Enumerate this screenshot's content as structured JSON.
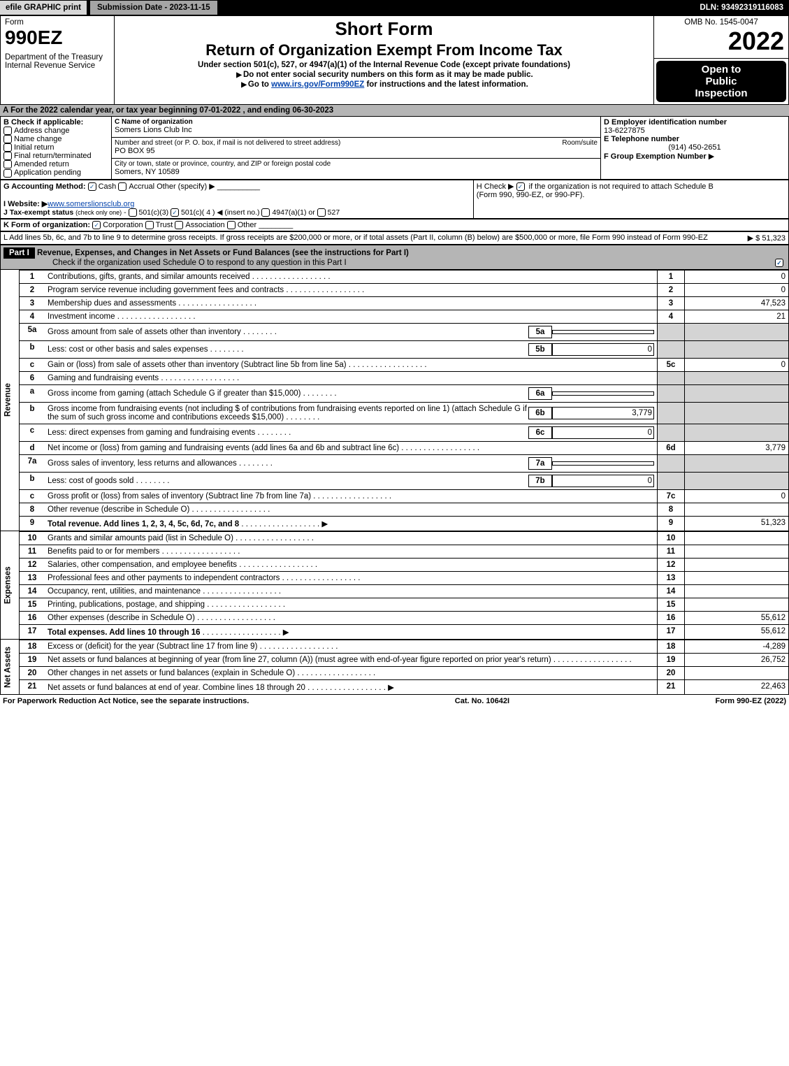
{
  "topbar": {
    "efile": "efile GRAPHIC print",
    "subdate": "Submission Date - 2023-11-15",
    "dln": "DLN: 93492319116083"
  },
  "header": {
    "form_label": "Form",
    "form_no": "990EZ",
    "dept": "Department of the Treasury",
    "irs": "Internal Revenue Service",
    "title1": "Short Form",
    "title2": "Return of Organization Exempt From Income Tax",
    "subtitle": "Under section 501(c), 527, or 4947(a)(1) of the Internal Revenue Code (except private foundations)",
    "note1": "Do not enter social security numbers on this form as it may be made public.",
    "note2_pre": "Go to ",
    "note2_link": "www.irs.gov/Form990EZ",
    "note2_post": " for instructions and the latest information.",
    "omb": "OMB No. 1545-0047",
    "year": "2022",
    "open1": "Open to",
    "open2": "Public",
    "open3": "Inspection"
  },
  "sectionA": "A  For the 2022 calendar year, or tax year beginning 07-01-2022 , and ending 06-30-2023",
  "boxB": {
    "title": "B  Check if applicable:",
    "opts": [
      "Address change",
      "Name change",
      "Initial return",
      "Final return/terminated",
      "Amended return",
      "Application pending"
    ]
  },
  "boxC": {
    "label_name": "C Name of organization",
    "name": "Somers Lions Club Inc",
    "label_addr": "Number and street (or P. O. box, if mail is not delivered to street address)",
    "room": "Room/suite",
    "addr": "PO BOX 95",
    "label_city": "City or town, state or province, country, and ZIP or foreign postal code",
    "city": "Somers, NY  10589"
  },
  "boxD": {
    "label": "D Employer identification number",
    "val": "13-6227875"
  },
  "boxE": {
    "label": "E Telephone number",
    "val": "(914) 450-2651"
  },
  "boxF": {
    "label": "F Group Exemption Number",
    "arrow": "▶"
  },
  "rowG": {
    "label": "G Accounting Method:",
    "cash": "Cash",
    "accrual": "Accrual",
    "other": "Other (specify) ▶"
  },
  "rowH": {
    "text1": "H  Check ▶",
    "text2": "if the organization is not required to attach Schedule B",
    "text3": "(Form 990, 990-EZ, or 990-PF)."
  },
  "rowI": {
    "label": "I Website: ▶",
    "val": "www.somerslionsclub.org"
  },
  "rowJ": "J Tax-exempt status (check only one) -  501(c)(3)   501(c)( 4 ) ◀ (insert no.)   4947(a)(1) or   527",
  "rowK": "K Form of organization:   Corporation   Trust   Association   Other",
  "rowL": {
    "text": "L Add lines 5b, 6c, and 7b to line 9 to determine gross receipts. If gross receipts are $200,000 or more, or if total assets (Part II, column (B) below) are $500,000 or more, file Form 990 instead of Form 990-EZ",
    "val": "▶ $ 51,323"
  },
  "part1": {
    "label": "Part I",
    "title": "Revenue, Expenses, and Changes in Net Assets or Fund Balances (see the instructions for Part I)",
    "check": "Check if the organization used Schedule O to respond to any question in this Part I"
  },
  "sidelabels": {
    "rev": "Revenue",
    "exp": "Expenses",
    "na": "Net Assets"
  },
  "lines": [
    {
      "n": "1",
      "d": "Contributions, gifts, grants, and similar amounts received",
      "rn": "1",
      "rv": "0"
    },
    {
      "n": "2",
      "d": "Program service revenue including government fees and contracts",
      "rn": "2",
      "rv": "0"
    },
    {
      "n": "3",
      "d": "Membership dues and assessments",
      "rn": "3",
      "rv": "47,523"
    },
    {
      "n": "4",
      "d": "Investment income",
      "rn": "4",
      "rv": "21"
    },
    {
      "n": "5a",
      "d": "Gross amount from sale of assets other than inventory",
      "sn": "5a",
      "sv": "",
      "shade": true
    },
    {
      "n": "b",
      "d": "Less: cost or other basis and sales expenses",
      "sn": "5b",
      "sv": "0",
      "shade": true
    },
    {
      "n": "c",
      "d": "Gain or (loss) from sale of assets other than inventory (Subtract line 5b from line 5a)",
      "rn": "5c",
      "rv": "0"
    },
    {
      "n": "6",
      "d": "Gaming and fundraising events",
      "shade": true
    },
    {
      "n": "a",
      "d": "Gross income from gaming (attach Schedule G if greater than $15,000)",
      "sn": "6a",
      "sv": "",
      "shade": true
    },
    {
      "n": "b",
      "d": "Gross income from fundraising events (not including $                of contributions from fundraising events reported on line 1) (attach Schedule G if the sum of such gross income and contributions exceeds $15,000)",
      "sn": "6b",
      "sv": "3,779",
      "shade": true
    },
    {
      "n": "c",
      "d": "Less: direct expenses from gaming and fundraising events",
      "sn": "6c",
      "sv": "0",
      "shade": true
    },
    {
      "n": "d",
      "d": "Net income or (loss) from gaming and fundraising events (add lines 6a and 6b and subtract line 6c)",
      "rn": "6d",
      "rv": "3,779"
    },
    {
      "n": "7a",
      "d": "Gross sales of inventory, less returns and allowances",
      "sn": "7a",
      "sv": "",
      "shade": true
    },
    {
      "n": "b",
      "d": "Less: cost of goods sold",
      "sn": "7b",
      "sv": "0",
      "shade": true
    },
    {
      "n": "c",
      "d": "Gross profit or (loss) from sales of inventory (Subtract line 7b from line 7a)",
      "rn": "7c",
      "rv": "0"
    },
    {
      "n": "8",
      "d": "Other revenue (describe in Schedule O)",
      "rn": "8",
      "rv": ""
    },
    {
      "n": "9",
      "d": "Total revenue. Add lines 1, 2, 3, 4, 5c, 6d, 7c, and 8",
      "rn": "9",
      "rv": "51,323",
      "bold": true,
      "arrow": true
    }
  ],
  "expenses": [
    {
      "n": "10",
      "d": "Grants and similar amounts paid (list in Schedule O)",
      "rn": "10",
      "rv": ""
    },
    {
      "n": "11",
      "d": "Benefits paid to or for members",
      "rn": "11",
      "rv": ""
    },
    {
      "n": "12",
      "d": "Salaries, other compensation, and employee benefits",
      "rn": "12",
      "rv": ""
    },
    {
      "n": "13",
      "d": "Professional fees and other payments to independent contractors",
      "rn": "13",
      "rv": ""
    },
    {
      "n": "14",
      "d": "Occupancy, rent, utilities, and maintenance",
      "rn": "14",
      "rv": ""
    },
    {
      "n": "15",
      "d": "Printing, publications, postage, and shipping",
      "rn": "15",
      "rv": ""
    },
    {
      "n": "16",
      "d": "Other expenses (describe in Schedule O)",
      "rn": "16",
      "rv": "55,612"
    },
    {
      "n": "17",
      "d": "Total expenses. Add lines 10 through 16",
      "rn": "17",
      "rv": "55,612",
      "bold": true,
      "arrow": true
    }
  ],
  "netassets": [
    {
      "n": "18",
      "d": "Excess or (deficit) for the year (Subtract line 17 from line 9)",
      "rn": "18",
      "rv": "-4,289"
    },
    {
      "n": "19",
      "d": "Net assets or fund balances at beginning of year (from line 27, column (A)) (must agree with end-of-year figure reported on prior year's return)",
      "rn": "19",
      "rv": "26,752"
    },
    {
      "n": "20",
      "d": "Other changes in net assets or fund balances (explain in Schedule O)",
      "rn": "20",
      "rv": ""
    },
    {
      "n": "21",
      "d": "Net assets or fund balances at end of year. Combine lines 18 through 20",
      "rn": "21",
      "rv": "22,463",
      "arrow": true
    }
  ],
  "footer": {
    "left": "For Paperwork Reduction Act Notice, see the separate instructions.",
    "mid": "Cat. No. 10642I",
    "right": "Form 990-EZ (2022)"
  }
}
